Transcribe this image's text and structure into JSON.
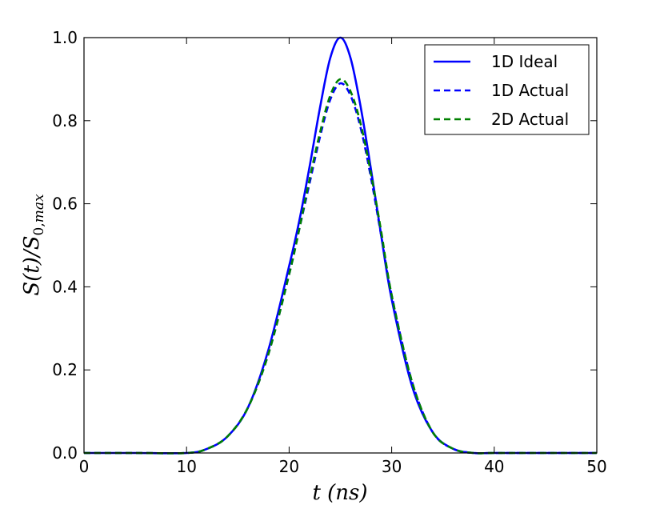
{
  "chart_data": {
    "type": "line",
    "title": "",
    "xlabel": "t (ns)",
    "ylabel": "S(t)/S0,max",
    "xlim": [
      0,
      50
    ],
    "ylim": [
      0,
      1.0
    ],
    "xticks": [
      "0",
      "10",
      "20",
      "30",
      "40",
      "50"
    ],
    "yticks": [
      "0.0",
      "0.2",
      "0.4",
      "0.6",
      "0.8",
      "1.0"
    ],
    "grid": false,
    "legend_position": "top-right",
    "x": [
      0,
      5,
      10,
      12,
      14,
      16,
      18,
      20,
      21,
      22,
      23,
      24,
      25,
      26,
      27,
      28,
      29,
      30,
      32,
      34,
      36,
      38,
      40,
      45,
      50
    ],
    "series": [
      {
        "name": "1D Ideal",
        "color": "#0000ff",
        "style": "solid",
        "values": [
          0.0,
          0.0,
          0.0,
          0.01,
          0.04,
          0.11,
          0.25,
          0.45,
          0.56,
          0.69,
          0.83,
          0.95,
          1.0,
          0.95,
          0.83,
          0.68,
          0.52,
          0.37,
          0.16,
          0.05,
          0.01,
          0.0,
          0.0,
          0.0,
          0.0
        ]
      },
      {
        "name": "1D Actual",
        "color": "#0000ff",
        "style": "dashed",
        "values": [
          0.0,
          0.0,
          0.0,
          0.01,
          0.04,
          0.11,
          0.24,
          0.43,
          0.54,
          0.65,
          0.76,
          0.85,
          0.89,
          0.86,
          0.78,
          0.66,
          0.52,
          0.38,
          0.17,
          0.05,
          0.01,
          0.0,
          0.0,
          0.0,
          0.0
        ]
      },
      {
        "name": "2D Actual",
        "color": "#008000",
        "style": "dashed",
        "values": [
          0.0,
          0.0,
          0.0,
          0.01,
          0.04,
          0.11,
          0.24,
          0.43,
          0.54,
          0.66,
          0.77,
          0.86,
          0.9,
          0.87,
          0.79,
          0.67,
          0.53,
          0.38,
          0.17,
          0.05,
          0.01,
          0.0,
          0.0,
          0.0,
          0.0
        ]
      }
    ]
  }
}
